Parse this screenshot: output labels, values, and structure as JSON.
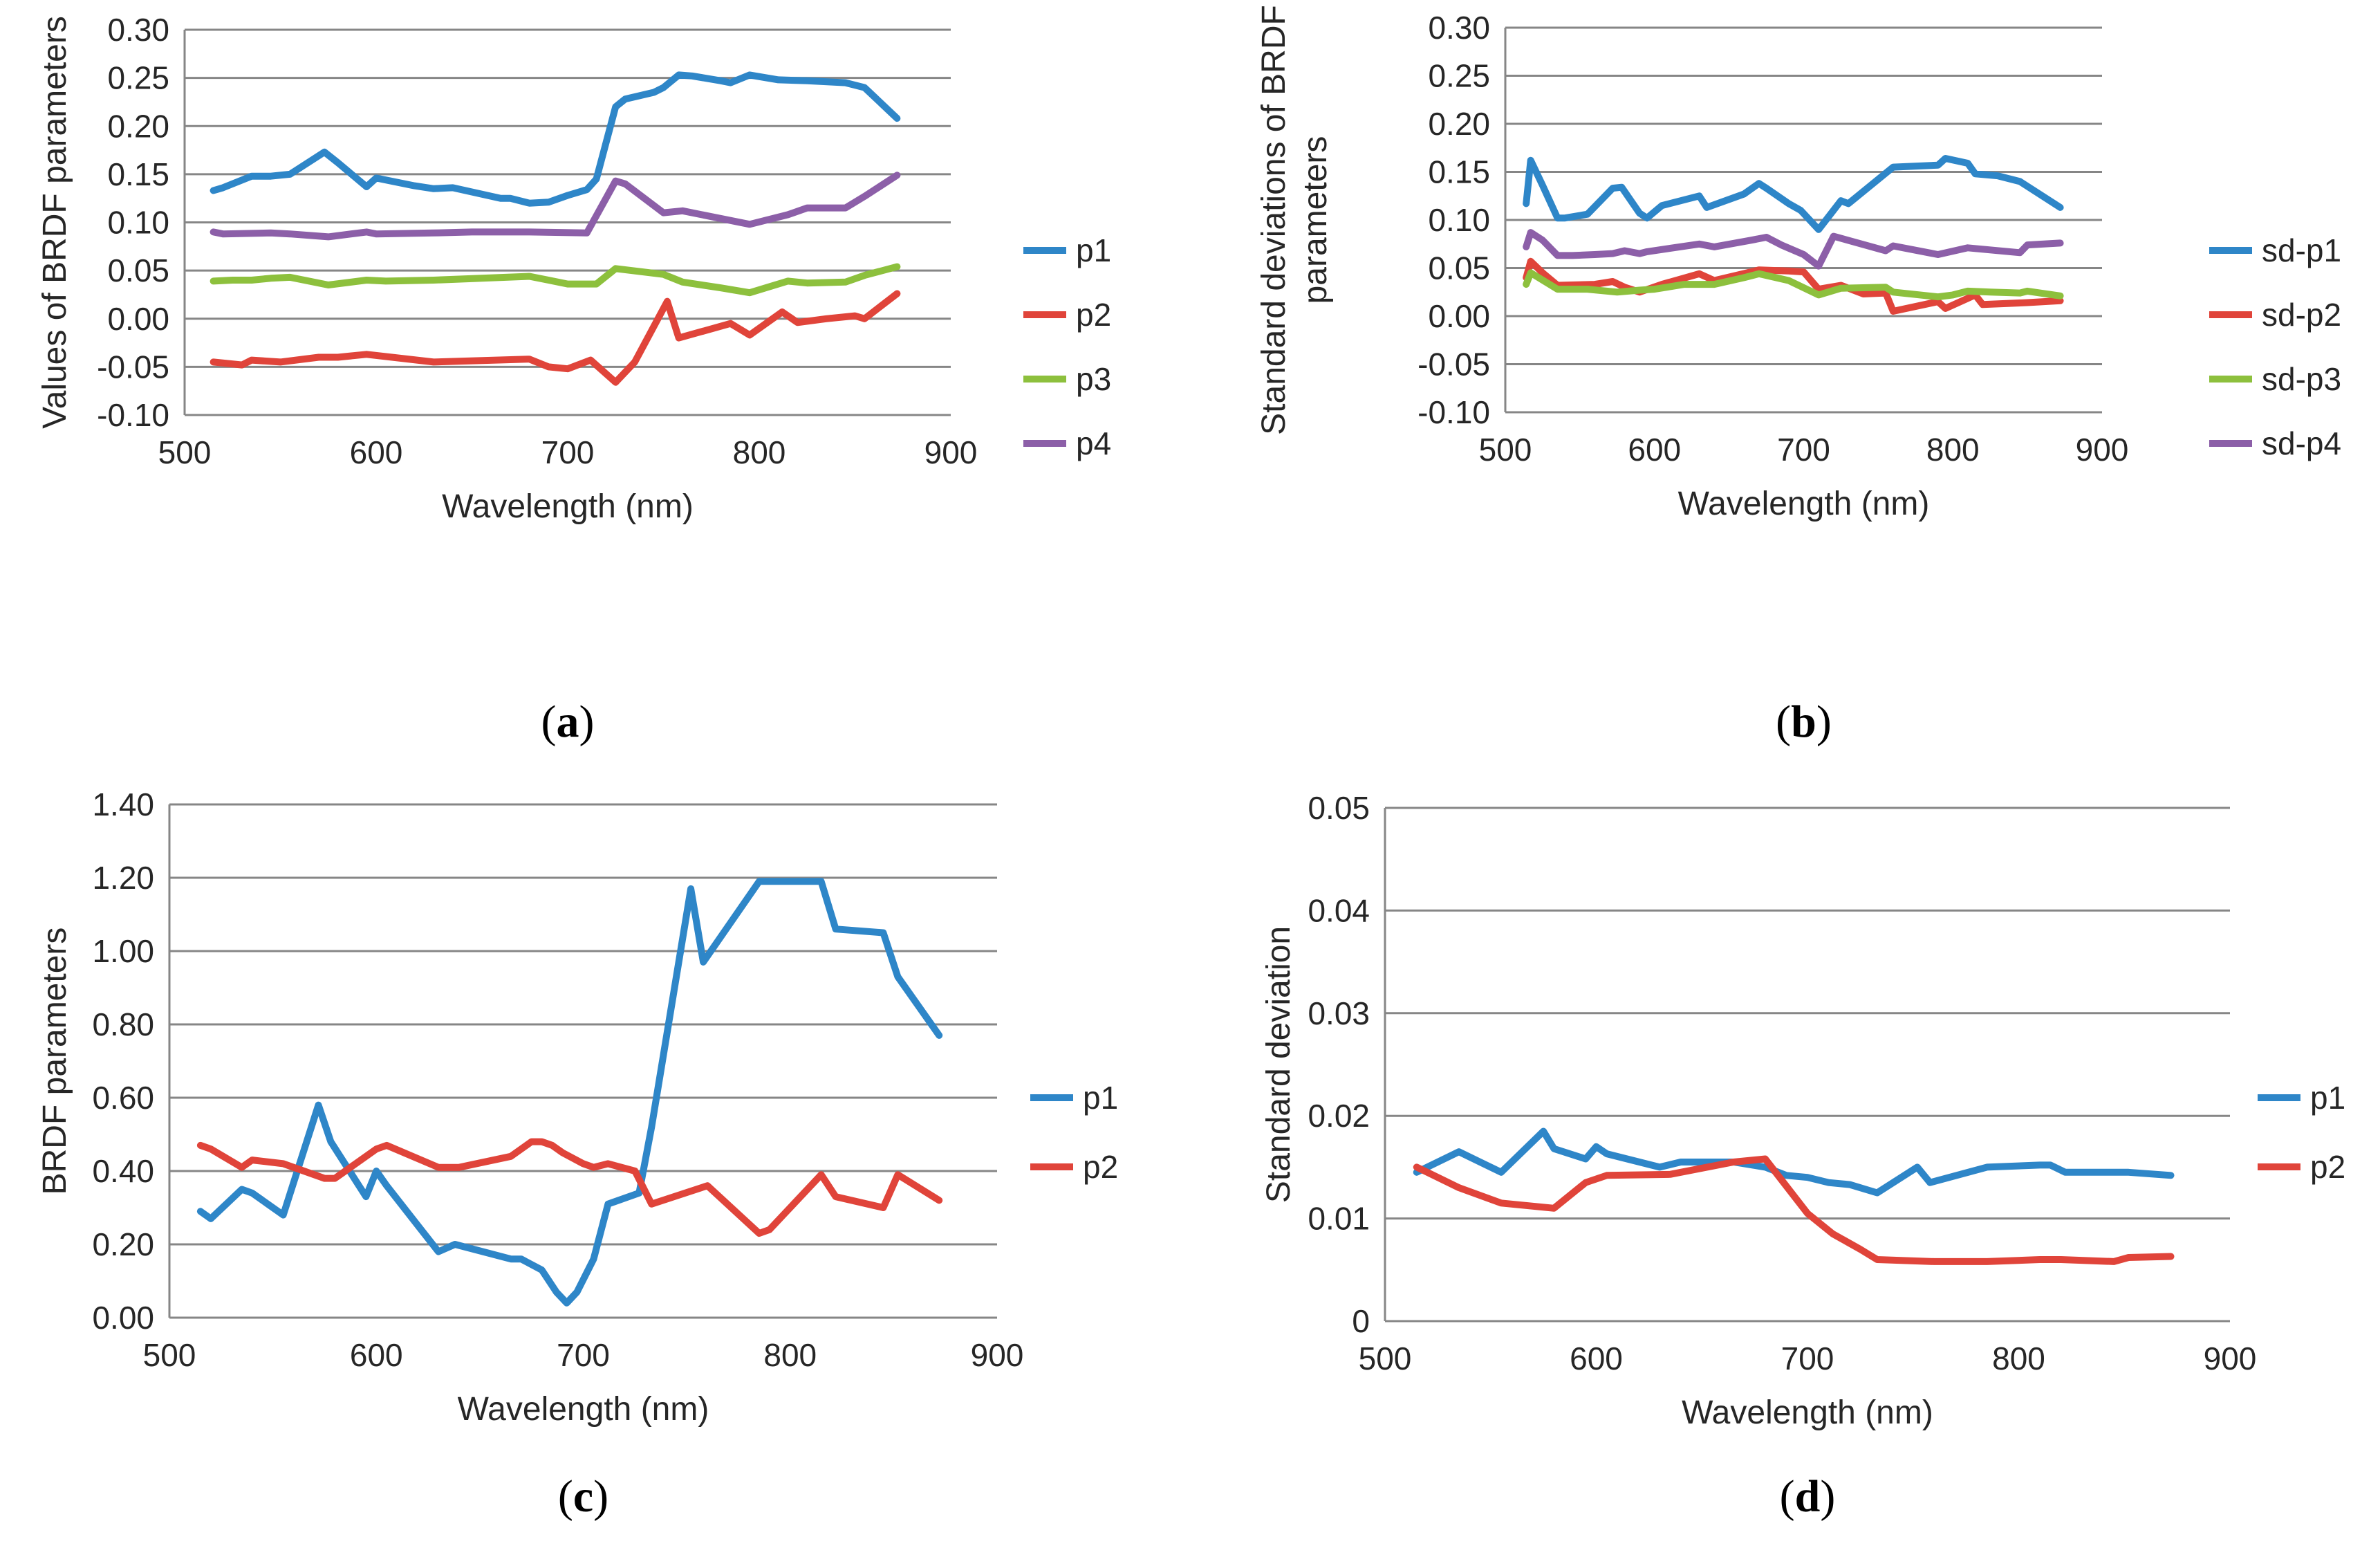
{
  "colors": {
    "blue": "#2E86C8",
    "red": "#E0443A",
    "green": "#8DC03D",
    "purple": "#8C5FA8"
  },
  "chart_data": [
    {
      "id": "a",
      "type": "line",
      "panel_label": "a",
      "xlabel": "Wavelength (nm)",
      "ylabel_lines": [
        "Values of BRDF parameters"
      ],
      "xlim": [
        500,
        900
      ],
      "ylim": [
        -0.1,
        0.3
      ],
      "xticks": [
        500,
        600,
        700,
        800,
        900
      ],
      "xtick_labels": [
        "500",
        "600",
        "700",
        "800",
        "900"
      ],
      "yticks": [
        -0.1,
        -0.05,
        0,
        0.05,
        0.1,
        0.15,
        0.2,
        0.25,
        0.3
      ],
      "ytick_labels": [
        "-0.10",
        "-0.05",
        "0.00",
        "0.05",
        "0.10",
        "0.15",
        "0.20",
        "0.25",
        "0.30"
      ],
      "grid": true,
      "legend_position": "right",
      "series": [
        {
          "name": "p1",
          "color": "#2E86C8",
          "x": [
            515,
            520,
            535,
            545,
            555,
            573,
            580,
            595,
            600,
            620,
            630,
            640,
            665,
            670,
            680,
            690,
            700,
            710,
            715,
            725,
            730,
            745,
            750,
            758,
            765,
            780,
            785,
            795,
            810,
            825,
            845,
            855,
            872
          ],
          "y": [
            0.133,
            0.136,
            0.148,
            0.148,
            0.15,
            0.173,
            0.162,
            0.137,
            0.146,
            0.138,
            0.135,
            0.136,
            0.125,
            0.125,
            0.12,
            0.121,
            0.128,
            0.134,
            0.145,
            0.22,
            0.228,
            0.235,
            0.24,
            0.253,
            0.252,
            0.247,
            0.245,
            0.253,
            0.248,
            0.247,
            0.245,
            0.24,
            0.208
          ]
        },
        {
          "name": "p2",
          "color": "#E0443A",
          "x": [
            515,
            530,
            535,
            550,
            570,
            580,
            595,
            630,
            680,
            690,
            700,
            712,
            725,
            735,
            752,
            758,
            785,
            795,
            812,
            820,
            835,
            850,
            855,
            872
          ],
          "y": [
            -0.045,
            -0.048,
            -0.043,
            -0.045,
            -0.04,
            -0.04,
            -0.037,
            -0.045,
            -0.042,
            -0.05,
            -0.052,
            -0.043,
            -0.066,
            -0.045,
            0.018,
            -0.02,
            -0.005,
            -0.017,
            0.007,
            -0.004,
            0.0,
            0.003,
            0.0,
            0.026
          ]
        },
        {
          "name": "p3",
          "color": "#8DC03D",
          "x": [
            515,
            525,
            535,
            545,
            555,
            575,
            595,
            605,
            630,
            680,
            690,
            700,
            715,
            725,
            750,
            760,
            780,
            795,
            815,
            825,
            845,
            855,
            872
          ],
          "y": [
            0.039,
            0.04,
            0.04,
            0.042,
            0.043,
            0.035,
            0.04,
            0.039,
            0.04,
            0.044,
            0.04,
            0.036,
            0.036,
            0.052,
            0.046,
            0.038,
            0.032,
            0.027,
            0.039,
            0.037,
            0.038,
            0.045,
            0.054
          ]
        },
        {
          "name": "p4",
          "color": "#8C5FA8",
          "x": [
            515,
            520,
            545,
            555,
            575,
            595,
            600,
            630,
            650,
            680,
            710,
            725,
            730,
            750,
            760,
            795,
            815,
            825,
            845,
            855,
            872
          ],
          "y": [
            0.09,
            0.088,
            0.089,
            0.088,
            0.085,
            0.09,
            0.088,
            0.089,
            0.09,
            0.09,
            0.089,
            0.143,
            0.14,
            0.11,
            0.112,
            0.098,
            0.108,
            0.115,
            0.115,
            0.127,
            0.149
          ]
        }
      ]
    },
    {
      "id": "b",
      "type": "line",
      "panel_label": "b",
      "xlabel": "Wavelength (nm)",
      "ylabel_lines": [
        "Standard deviations of BRDF",
        "parameters"
      ],
      "xlim": [
        500,
        900
      ],
      "ylim": [
        -0.1,
        0.3
      ],
      "xticks": [
        500,
        600,
        700,
        800,
        900
      ],
      "xtick_labels": [
        "500",
        "600",
        "700",
        "800",
        "900"
      ],
      "yticks": [
        -0.1,
        -0.05,
        0,
        0.05,
        0.1,
        0.15,
        0.2,
        0.25,
        0.3
      ],
      "ytick_labels": [
        "-0.10",
        "-0.05",
        "0.00",
        "0.05",
        "0.10",
        "0.15",
        "0.20",
        "0.25",
        "0.30"
      ],
      "grid": true,
      "legend_position": "right",
      "series": [
        {
          "name": "sd-p1",
          "color": "#2E86C8",
          "x": [
            514,
            517,
            525,
            535,
            540,
            555,
            572,
            578,
            590,
            595,
            605,
            630,
            635,
            660,
            670,
            675,
            690,
            698,
            710,
            725,
            730,
            760,
            790,
            795,
            810,
            815,
            830,
            845,
            872
          ],
          "y": [
            0.117,
            0.162,
            0.136,
            0.102,
            0.102,
            0.106,
            0.133,
            0.134,
            0.107,
            0.102,
            0.115,
            0.125,
            0.113,
            0.127,
            0.138,
            0.133,
            0.117,
            0.11,
            0.09,
            0.12,
            0.117,
            0.155,
            0.157,
            0.164,
            0.159,
            0.148,
            0.146,
            0.14,
            0.113
          ]
        },
        {
          "name": "sd-p2",
          "color": "#E0443A",
          "x": [
            514,
            517,
            525,
            535,
            560,
            572,
            580,
            590,
            605,
            630,
            640,
            670,
            690,
            700,
            710,
            725,
            740,
            755,
            760,
            790,
            795,
            815,
            820,
            850,
            872
          ],
          "y": [
            0.04,
            0.057,
            0.045,
            0.032,
            0.033,
            0.036,
            0.03,
            0.025,
            0.033,
            0.044,
            0.037,
            0.048,
            0.047,
            0.046,
            0.028,
            0.032,
            0.023,
            0.024,
            0.005,
            0.015,
            0.008,
            0.022,
            0.012,
            0.014,
            0.016
          ]
        },
        {
          "name": "sd-p3",
          "color": "#8DC03D",
          "x": [
            514,
            517,
            535,
            555,
            575,
            590,
            600,
            620,
            640,
            660,
            670,
            690,
            710,
            725,
            755,
            760,
            790,
            800,
            810,
            825,
            845,
            850,
            872
          ],
          "y": [
            0.033,
            0.045,
            0.028,
            0.028,
            0.025,
            0.027,
            0.028,
            0.033,
            0.033,
            0.04,
            0.044,
            0.037,
            0.022,
            0.029,
            0.03,
            0.025,
            0.02,
            0.022,
            0.026,
            0.025,
            0.024,
            0.026,
            0.021
          ]
        },
        {
          "name": "sd-p4",
          "color": "#8C5FA8",
          "x": [
            514,
            517,
            525,
            535,
            545,
            560,
            572,
            580,
            590,
            595,
            630,
            640,
            665,
            675,
            685,
            700,
            710,
            720,
            755,
            760,
            790,
            810,
            845,
            850,
            872
          ],
          "y": [
            0.072,
            0.087,
            0.079,
            0.063,
            0.063,
            0.064,
            0.065,
            0.068,
            0.065,
            0.067,
            0.075,
            0.072,
            0.079,
            0.082,
            0.074,
            0.064,
            0.052,
            0.083,
            0.068,
            0.073,
            0.064,
            0.071,
            0.066,
            0.074,
            0.076
          ]
        }
      ]
    },
    {
      "id": "c",
      "type": "line",
      "panel_label": "c",
      "xlabel": "Wavelength (nm)",
      "ylabel_lines": [
        "BRDF parameters"
      ],
      "xlim": [
        500,
        900
      ],
      "ylim": [
        0,
        1.4
      ],
      "xticks": [
        500,
        600,
        700,
        800,
        900
      ],
      "xtick_labels": [
        "500",
        "600",
        "700",
        "800",
        "900"
      ],
      "yticks": [
        0,
        0.2,
        0.4,
        0.6,
        0.8,
        1.0,
        1.2,
        1.4
      ],
      "ytick_labels": [
        "0.00",
        "0.20",
        "0.40",
        "0.60",
        "0.80",
        "1.00",
        "1.20",
        "1.40"
      ],
      "grid": true,
      "legend_position": "right",
      "series": [
        {
          "name": "p1",
          "color": "#2E86C8",
          "x": [
            515,
            520,
            535,
            540,
            555,
            572,
            578,
            595,
            600,
            605,
            630,
            638,
            665,
            670,
            680,
            687,
            692,
            697,
            705,
            712,
            727,
            733,
            752,
            758,
            785,
            790,
            800,
            815,
            822,
            845,
            852,
            872
          ],
          "y": [
            0.29,
            0.27,
            0.35,
            0.34,
            0.28,
            0.58,
            0.48,
            0.33,
            0.4,
            0.36,
            0.18,
            0.2,
            0.16,
            0.16,
            0.13,
            0.07,
            0.04,
            0.07,
            0.16,
            0.31,
            0.34,
            0.52,
            1.17,
            0.97,
            1.19,
            1.19,
            1.19,
            1.19,
            1.06,
            1.05,
            0.93,
            0.77
          ]
        },
        {
          "name": "p2",
          "color": "#E0443A",
          "x": [
            515,
            520,
            535,
            540,
            555,
            575,
            580,
            600,
            605,
            630,
            640,
            665,
            675,
            680,
            685,
            690,
            700,
            705,
            712,
            725,
            733,
            760,
            785,
            790,
            815,
            822,
            845,
            852,
            872
          ],
          "y": [
            0.47,
            0.46,
            0.41,
            0.43,
            0.42,
            0.38,
            0.38,
            0.46,
            0.47,
            0.41,
            0.41,
            0.44,
            0.48,
            0.48,
            0.47,
            0.45,
            0.42,
            0.41,
            0.42,
            0.4,
            0.31,
            0.36,
            0.23,
            0.24,
            0.39,
            0.33,
            0.3,
            0.39,
            0.32
          ]
        }
      ]
    },
    {
      "id": "d",
      "type": "line",
      "panel_label": "d",
      "xlabel": "Wavelength (nm)",
      "ylabel_lines": [
        "Standard deviation"
      ],
      "xlim": [
        500,
        900
      ],
      "ylim": [
        0,
        0.05
      ],
      "xticks": [
        500,
        600,
        700,
        800,
        900
      ],
      "xtick_labels": [
        "500",
        "600",
        "700",
        "800",
        "900"
      ],
      "yticks": [
        0,
        0.01,
        0.02,
        0.03,
        0.04,
        0.05
      ],
      "ytick_labels": [
        "0",
        "0.01",
        "0.02",
        "0.03",
        "0.04",
        "0.05"
      ],
      "grid": true,
      "legend_position": "right",
      "series": [
        {
          "name": "p1",
          "color": "#2E86C8",
          "x": [
            515,
            520,
            535,
            545,
            555,
            575,
            580,
            595,
            600,
            605,
            630,
            640,
            665,
            680,
            690,
            700,
            710,
            720,
            733,
            752,
            758,
            785,
            810,
            815,
            822,
            845,
            852,
            872
          ],
          "y": [
            0.0145,
            0.015,
            0.0165,
            0.0155,
            0.0145,
            0.0185,
            0.0168,
            0.0158,
            0.017,
            0.0163,
            0.015,
            0.0155,
            0.0155,
            0.015,
            0.0142,
            0.014,
            0.0135,
            0.0133,
            0.0125,
            0.015,
            0.0135,
            0.015,
            0.0152,
            0.0152,
            0.0145,
            0.0145,
            0.0145,
            0.0142
          ]
        },
        {
          "name": "p2",
          "color": "#E0443A",
          "x": [
            515,
            520,
            535,
            555,
            580,
            595,
            605,
            635,
            665,
            680,
            700,
            712,
            725,
            733,
            760,
            785,
            810,
            820,
            845,
            852,
            872
          ],
          "y": [
            0.015,
            0.0145,
            0.013,
            0.0115,
            0.011,
            0.0135,
            0.0142,
            0.0143,
            0.0155,
            0.0158,
            0.0105,
            0.0085,
            0.007,
            0.006,
            0.0058,
            0.0058,
            0.006,
            0.006,
            0.0058,
            0.0062,
            0.0063
          ]
        }
      ]
    }
  ]
}
